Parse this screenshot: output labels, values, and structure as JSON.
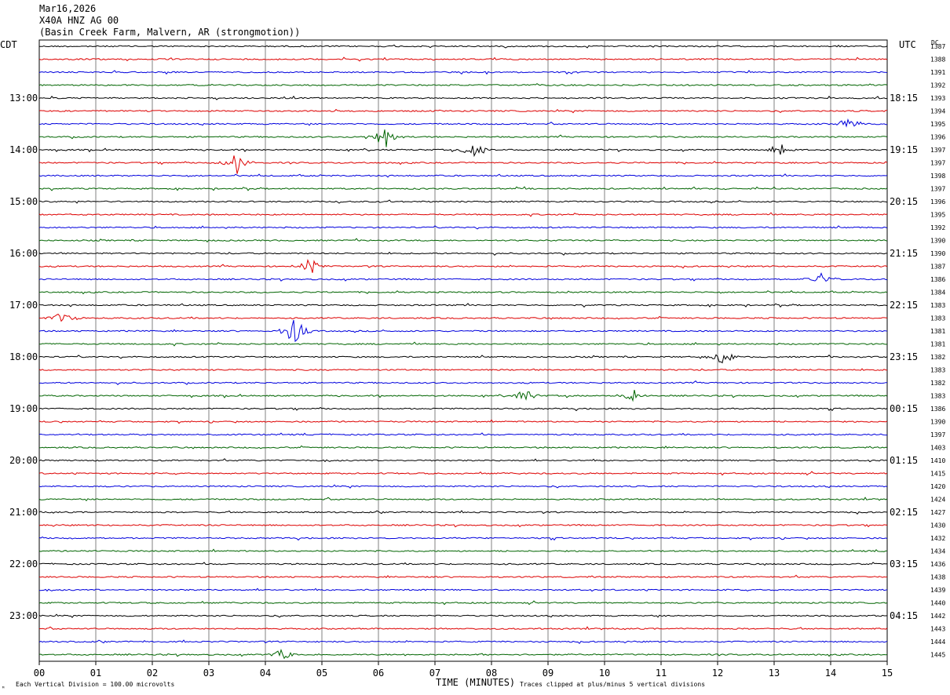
{
  "header": {
    "date": "Mar16,2026",
    "station": "X40A HNZ AG 00",
    "location": "(Basin Creek Farm, Malvern, AR (strongmotion))"
  },
  "labels": {
    "left_timezone": "CDT",
    "right_timezone": "UTC",
    "dc_label": "DC",
    "x_axis_title": "TIME (MINUTES)",
    "footer_left": "Each Vertical Division =  100.00 microvolts",
    "footer_right": "Traces clipped at plus/minus 5 vertical divisions"
  },
  "colors": {
    "trace_cycle": [
      "#000000",
      "#dd0000",
      "#0000dd",
      "#006400"
    ],
    "grid": "#808080",
    "background": "#ffffff"
  },
  "chart_data": {
    "type": "line",
    "subtype": "helicorder",
    "x_ticks": [
      "00",
      "01",
      "02",
      "03",
      "04",
      "05",
      "06",
      "07",
      "08",
      "09",
      "10",
      "11",
      "12",
      "13",
      "14",
      "15"
    ],
    "xlim": [
      0,
      15
    ],
    "minutes_per_line": 15,
    "num_lines": 48,
    "left_hour_labels": [
      "13:00",
      "14:00",
      "15:00",
      "16:00",
      "17:00",
      "18:00",
      "19:00",
      "20:00",
      "21:00",
      "22:00",
      "23:00"
    ],
    "right_hour_labels": [
      "18:15",
      "19:15",
      "20:15",
      "21:15",
      "22:15",
      "23:15",
      "00:15",
      "01:15",
      "02:15",
      "03:15",
      "04:15"
    ],
    "dc_values": [
      "1387",
      "1388",
      "1391",
      "1392",
      "1393",
      "1394",
      "1395",
      "1396",
      "1397",
      "1397",
      "1398",
      "1397",
      "1396",
      "1395",
      "1392",
      "1390",
      "1390",
      "1387",
      "1386",
      "1384",
      "1383",
      "1383",
      "1381",
      "1381",
      "1382",
      "1383",
      "1382",
      "1383",
      "1386",
      "1390",
      "1397",
      "1403",
      "1410",
      "1415",
      "1420",
      "1424",
      "1427",
      "1430",
      "1432",
      "1434",
      "1436",
      "1438",
      "1439",
      "1440",
      "1442",
      "1443",
      "1444",
      "1445"
    ],
    "events": [
      {
        "line": 6,
        "minute": 14.3,
        "amp": 0.7
      },
      {
        "line": 7,
        "minute": 6.1,
        "amp": 1.2
      },
      {
        "line": 8,
        "minute": 7.7,
        "amp": 0.9
      },
      {
        "line": 8,
        "minute": 13.1,
        "amp": 0.6
      },
      {
        "line": 9,
        "minute": 3.5,
        "amp": 1.0
      },
      {
        "line": 17,
        "minute": 4.8,
        "amp": 0.7
      },
      {
        "line": 18,
        "minute": 13.8,
        "amp": 0.6
      },
      {
        "line": 21,
        "minute": 0.4,
        "amp": 0.7
      },
      {
        "line": 22,
        "minute": 4.5,
        "amp": 1.3
      },
      {
        "line": 24,
        "minute": 12.1,
        "amp": 0.7
      },
      {
        "line": 27,
        "minute": 8.6,
        "amp": 0.6
      },
      {
        "line": 27,
        "minute": 10.5,
        "amp": 0.6
      },
      {
        "line": 47,
        "minute": 4.3,
        "amp": 0.6
      }
    ]
  }
}
